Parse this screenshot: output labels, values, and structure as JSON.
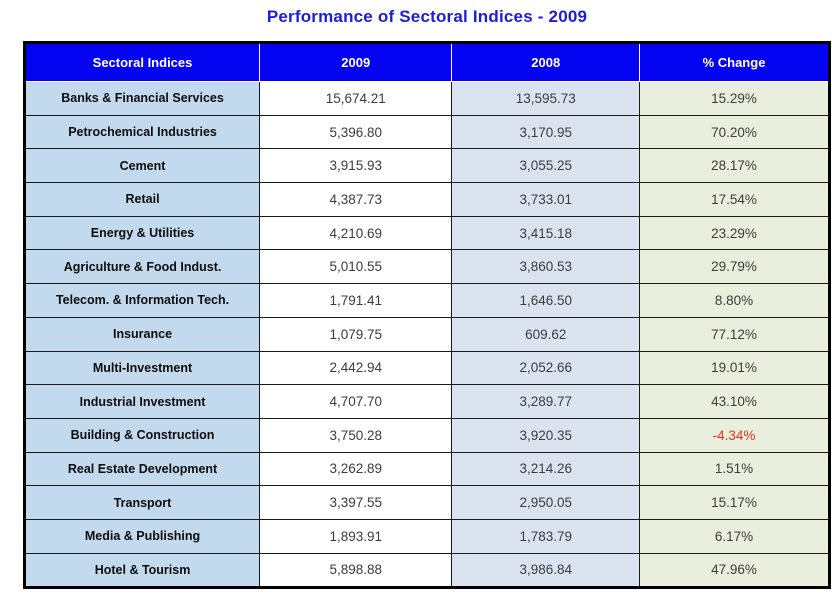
{
  "title": "Performance of Sectoral Indices - 2009",
  "table": {
    "columns": [
      "Sectoral Indices",
      "2009",
      "2008",
      "% Change"
    ],
    "rows": [
      {
        "sector": "Banks & Financial Services",
        "y2009": "15,674.21",
        "y2008": "13,595.73",
        "change": "15.29%"
      },
      {
        "sector": "Petrochemical Industries",
        "y2009": "5,396.80",
        "y2008": "3,170.95",
        "change": "70.20%"
      },
      {
        "sector": "Cement",
        "y2009": "3,915.93",
        "y2008": "3,055.25",
        "change": "28.17%"
      },
      {
        "sector": "Retail",
        "y2009": "4,387.73",
        "y2008": "3,733.01",
        "change": "17.54%"
      },
      {
        "sector": "Energy & Utilities",
        "y2009": "4,210.69",
        "y2008": "3,415.18",
        "change": "23.29%"
      },
      {
        "sector": "Agriculture & Food Indust.",
        "y2009": "5,010.55",
        "y2008": "3,860.53",
        "change": "29.79%"
      },
      {
        "sector": "Telecom. & Information Tech.",
        "y2009": "1,791.41",
        "y2008": "1,646.50",
        "change": "8.80%"
      },
      {
        "sector": "Insurance",
        "y2009": "1,079.75",
        "y2008": "609.62",
        "change": "77.12%"
      },
      {
        "sector": "Multi-Investment",
        "y2009": "2,442.94",
        "y2008": "2,052.66",
        "change": "19.01%"
      },
      {
        "sector": "Industrial Investment",
        "y2009": "4,707.70",
        "y2008": "3,289.77",
        "change": "43.10%"
      },
      {
        "sector": "Building & Construction",
        "y2009": "3,750.28",
        "y2008": "3,920.35",
        "change": "-4.34%"
      },
      {
        "sector": "Real Estate Development",
        "y2009": "3,262.89",
        "y2008": "3,214.26",
        "change": "1.51%"
      },
      {
        "sector": "Transport",
        "y2009": "3,397.55",
        "y2008": "2,950.05",
        "change": "15.17%"
      },
      {
        "sector": "Media & Publishing",
        "y2009": "1,893.91",
        "y2008": "1,783.79",
        "change": "6.17%"
      },
      {
        "sector": "Hotel & Tourism",
        "y2009": "5,898.88",
        "y2008": "3,986.84",
        "change": "47.96%"
      }
    ]
  },
  "colors": {
    "title_color": "#1d1dd6",
    "header_bg": "#0303f2",
    "header_text": "#ffffff",
    "col_sector_bg": "#c3d9ee",
    "col_2009_bg": "#ffffff",
    "col_2008_bg": "#dbe3f1",
    "col_change_bg": "#eaeedc",
    "outer_border": "#000000",
    "inner_border": "#1a1a1a",
    "number_text": "#3c3c3c",
    "label_text": "#0d0d0d",
    "negative_text": "#e93323"
  },
  "chart_data": {
    "type": "table",
    "title": "Performance of Sectoral Indices - 2009",
    "columns": [
      "Sectoral Indices",
      "2009",
      "2008",
      "% Change"
    ],
    "categories": [
      "Banks & Financial Services",
      "Petrochemical Industries",
      "Cement",
      "Retail",
      "Energy & Utilities",
      "Agriculture & Food Indust.",
      "Telecom. & Information Tech.",
      "Insurance",
      "Multi-Investment",
      "Industrial Investment",
      "Building & Construction",
      "Real Estate Development",
      "Transport",
      "Media & Publishing",
      "Hotel & Tourism"
    ],
    "series": [
      {
        "name": "2009",
        "values": [
          15674.21,
          5396.8,
          3915.93,
          4387.73,
          4210.69,
          5010.55,
          1791.41,
          1079.75,
          2442.94,
          4707.7,
          3750.28,
          3262.89,
          3397.55,
          1893.91,
          5898.88
        ]
      },
      {
        "name": "2008",
        "values": [
          13595.73,
          3170.95,
          3055.25,
          3733.01,
          3415.18,
          3860.53,
          1646.5,
          609.62,
          2052.66,
          3289.77,
          3920.35,
          3214.26,
          2950.05,
          1783.79,
          3986.84
        ]
      },
      {
        "name": "% Change",
        "values": [
          15.29,
          70.2,
          28.17,
          17.54,
          23.29,
          29.79,
          8.8,
          77.12,
          19.01,
          43.1,
          -4.34,
          1.51,
          15.17,
          6.17,
          47.96
        ]
      }
    ]
  }
}
